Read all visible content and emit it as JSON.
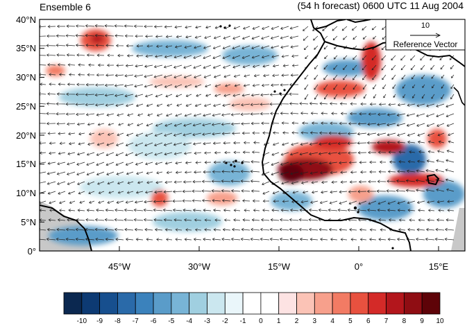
{
  "title_left": "Ensemble 6",
  "title_right": "(54 h forecast) 0600 UTC 11 Aug 2004",
  "lat_ticks": [
    "40°N",
    "35°N",
    "30°N",
    "25°N",
    "20°N",
    "15°N",
    "10°N",
    "5°N",
    "0°"
  ],
  "lon_ticks": [
    "45°W",
    "30°W",
    "15°W",
    "0°",
    "15°E"
  ],
  "reference_vector": {
    "value": "10",
    "label": "Reference Vector"
  },
  "colorbar": {
    "labels": [
      "-10",
      "-9",
      "-8",
      "-7",
      "-6",
      "-5",
      "-4",
      "-3",
      "-2",
      "-1",
      "0",
      "1",
      "2",
      "3",
      "4",
      "5",
      "6",
      "7",
      "8",
      "9",
      "10"
    ],
    "colors": [
      "#0b2850",
      "#0d3a73",
      "#174f8e",
      "#2a6aa9",
      "#3b82bc",
      "#5a9cc9",
      "#78b4d6",
      "#a0cfe0",
      "#cbe7ef",
      "#eaf6fa",
      "#ffffff",
      "#ffffff",
      "#fde3e3",
      "#fbc3b6",
      "#f7a08c",
      "#f27b64",
      "#e8513f",
      "#d42a28",
      "#b3161c",
      "#8f0d13",
      "#5e0308"
    ]
  },
  "field_colors": {
    "ocean_neutral": "#ffffff",
    "land_mask": "#c8c8c8",
    "coast": "#000000"
  }
}
